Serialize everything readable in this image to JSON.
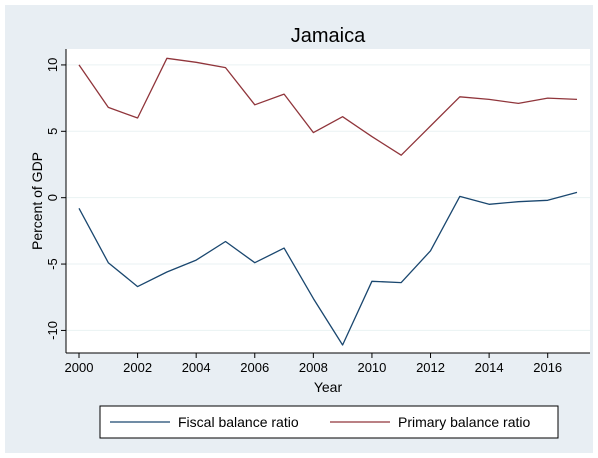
{
  "chart_data": {
    "type": "line",
    "title": "Jamaica",
    "xlabel": "Year",
    "ylabel": "Percent of GDP",
    "x": [
      2000,
      2001,
      2002,
      2003,
      2004,
      2005,
      2006,
      2007,
      2008,
      2009,
      2010,
      2011,
      2012,
      2013,
      2014,
      2015,
      2016,
      2017
    ],
    "xlim": [
      2000,
      2017
    ],
    "ylim": [
      -11.7,
      11.2
    ],
    "xticks": [
      "2000",
      "2002",
      "2004",
      "2006",
      "2008",
      "2010",
      "2012",
      "2014",
      "2016"
    ],
    "yticks": [
      "10",
      "5",
      "0",
      "-5",
      "-10"
    ],
    "grid": true,
    "legend_position": "bottom",
    "series": [
      {
        "name": "Fiscal balance ratio",
        "color": "#1a476f",
        "values": [
          -0.8,
          -4.9,
          -6.7,
          -5.6,
          -4.7,
          -3.3,
          -4.9,
          -3.8,
          -7.6,
          -11.1,
          -6.3,
          -6.4,
          -4.0,
          0.1,
          -0.5,
          -0.3,
          -0.2,
          0.4
        ]
      },
      {
        "name": "Primary balance ratio",
        "color": "#90353b",
        "values": [
          10.0,
          6.8,
          6.0,
          10.5,
          10.2,
          9.8,
          7.0,
          7.8,
          4.9,
          6.1,
          4.6,
          3.2,
          5.4,
          7.6,
          7.4,
          7.1,
          7.5,
          7.4
        ]
      }
    ]
  }
}
